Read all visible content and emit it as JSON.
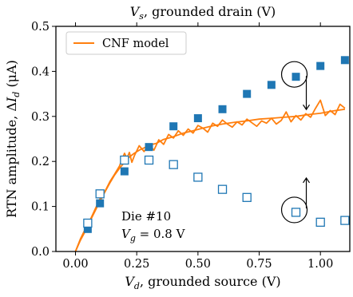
{
  "chart_data": {
    "type": "scatter",
    "top_xlabel": "V_s, grounded drain (V)",
    "xlabel": "V_d, grounded source (V)",
    "ylabel": "RTN amplitude, ΔI_d (μA)",
    "xlim": [
      -0.08,
      1.12
    ],
    "ylim": [
      0.0,
      0.5
    ],
    "xticks": [
      0.0,
      0.25,
      0.5,
      0.75,
      1.0
    ],
    "xtick_labels": [
      "0.00",
      "0.25",
      "0.50",
      "0.75",
      "1.00"
    ],
    "yticks": [
      0.0,
      0.1,
      0.2,
      0.3,
      0.4,
      0.5
    ],
    "ytick_labels": [
      "0.0",
      "0.1",
      "0.2",
      "0.3",
      "0.4",
      "0.5"
    ],
    "legend": {
      "position": "top-left",
      "entries": [
        "CNF model"
      ]
    },
    "grid": false,
    "annotations": [
      "Die #10",
      "V_g = 0.8 V"
    ],
    "colors": {
      "data": "#1f77b4",
      "model": "#ff7f0e"
    },
    "series": [
      {
        "name": "grounded source",
        "marker": "filled-square",
        "x": [
          0.05,
          0.1,
          0.2,
          0.3,
          0.4,
          0.5,
          0.6,
          0.7,
          0.8,
          0.9,
          1.0,
          1.1
        ],
        "y": [
          0.05,
          0.107,
          0.178,
          0.232,
          0.278,
          0.296,
          0.316,
          0.35,
          0.37,
          0.388,
          0.412,
          0.425
        ]
      },
      {
        "name": "grounded drain",
        "marker": "open-square",
        "x": [
          0.05,
          0.1,
          0.2,
          0.3,
          0.4,
          0.5,
          0.6,
          0.7,
          0.9,
          1.0,
          1.1
        ],
        "y": [
          0.063,
          0.128,
          0.203,
          0.203,
          0.193,
          0.165,
          0.138,
          0.12,
          0.087,
          0.065,
          0.069
        ]
      },
      {
        "name": "CNF model",
        "marker": "line",
        "x": [
          0.0,
          0.02,
          0.04,
          0.06,
          0.08,
          0.1,
          0.12,
          0.14,
          0.16,
          0.18,
          0.2,
          0.22,
          0.24,
          0.26,
          0.28,
          0.3,
          0.33,
          0.36,
          0.4,
          0.44,
          0.48,
          0.52,
          0.56,
          0.6,
          0.65,
          0.7,
          0.75,
          0.8,
          0.85,
          0.9,
          0.95,
          1.0,
          1.05,
          1.1
        ],
        "y": [
          0.0,
          0.025,
          0.045,
          0.068,
          0.09,
          0.112,
          0.132,
          0.152,
          0.17,
          0.185,
          0.198,
          0.21,
          0.218,
          0.225,
          0.23,
          0.236,
          0.24,
          0.249,
          0.255,
          0.263,
          0.268,
          0.274,
          0.279,
          0.283,
          0.287,
          0.29,
          0.294,
          0.296,
          0.298,
          0.3,
          0.304,
          0.307,
          0.312,
          0.316
        ]
      },
      {
        "name": "CNF model (noisy)",
        "marker": "line",
        "x": [
          0.0,
          0.02,
          0.04,
          0.06,
          0.08,
          0.1,
          0.12,
          0.14,
          0.16,
          0.18,
          0.19,
          0.2,
          0.21,
          0.22,
          0.23,
          0.24,
          0.26,
          0.28,
          0.3,
          0.32,
          0.34,
          0.36,
          0.38,
          0.4,
          0.42,
          0.44,
          0.46,
          0.48,
          0.5,
          0.52,
          0.54,
          0.56,
          0.58,
          0.6,
          0.62,
          0.64,
          0.66,
          0.68,
          0.7,
          0.72,
          0.74,
          0.76,
          0.78,
          0.8,
          0.82,
          0.84,
          0.86,
          0.88,
          0.9,
          0.92,
          0.94,
          0.96,
          0.98,
          1.0,
          1.02,
          1.04,
          1.06,
          1.08,
          1.1
        ],
        "y": [
          0.0,
          0.028,
          0.05,
          0.07,
          0.094,
          0.117,
          0.133,
          0.155,
          0.172,
          0.19,
          0.205,
          0.218,
          0.207,
          0.22,
          0.198,
          0.212,
          0.235,
          0.222,
          0.238,
          0.225,
          0.248,
          0.238,
          0.26,
          0.252,
          0.268,
          0.258,
          0.272,
          0.263,
          0.28,
          0.274,
          0.265,
          0.285,
          0.278,
          0.292,
          0.283,
          0.276,
          0.288,
          0.281,
          0.294,
          0.286,
          0.278,
          0.29,
          0.285,
          0.296,
          0.283,
          0.291,
          0.31,
          0.288,
          0.302,
          0.292,
          0.306,
          0.298,
          0.318,
          0.336,
          0.302,
          0.313,
          0.304,
          0.327,
          0.318
        ]
      }
    ]
  }
}
